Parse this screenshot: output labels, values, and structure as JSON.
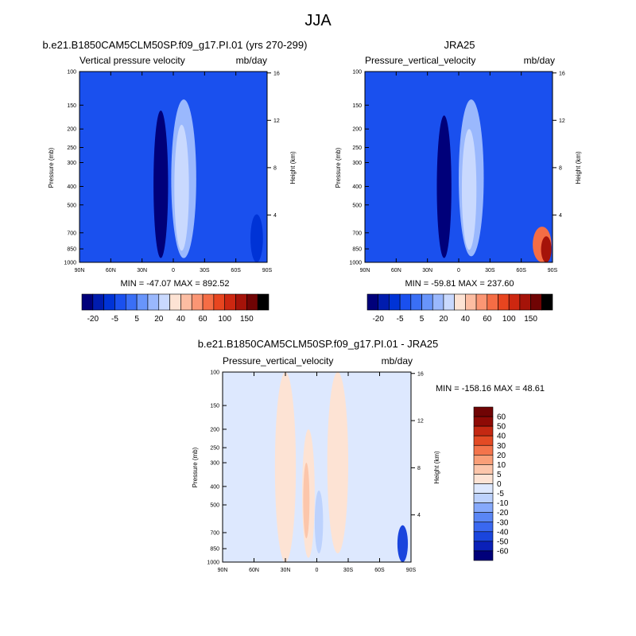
{
  "figure": {
    "main_title": "JJA"
  },
  "chart_data": [
    {
      "id": "model",
      "type": "heatmap",
      "case_title": "b.e21.B1850CAM5CLM50SP.f09_g17.PI.01 (yrs 270-299)",
      "left_title": "Vertical pressure velocity",
      "right_title": "mb/day",
      "ylabel": "Pressure (mb)",
      "y2label": "Height (km)",
      "xticks": [
        "90N",
        "60N",
        "30N",
        "0",
        "30S",
        "60S",
        "90S"
      ],
      "xlim": [
        90,
        -90
      ],
      "yticks": [
        100,
        150,
        200,
        250,
        300,
        400,
        500,
        700,
        850,
        1000
      ],
      "ylim": [
        100,
        1000
      ],
      "y2ticks": [
        4,
        8,
        12,
        16
      ],
      "stats": "MIN = -47.07  MAX = 892.52",
      "levels": [
        -20,
        -15,
        -10,
        -5,
        0,
        5,
        10,
        20,
        30,
        40,
        50,
        60,
        80,
        100,
        120,
        150
      ],
      "colorbar_labels": [
        "-20",
        "-5",
        "5",
        "20",
        "40",
        "60",
        "100",
        "150"
      ],
      "features": [
        {
          "lat": 12,
          "width": 7,
          "pmin": 160,
          "pmax": 950,
          "value": -21
        },
        {
          "lat": 12,
          "width": 3,
          "pmin": 200,
          "pmax": 880,
          "value": -30
        },
        {
          "lat": -10,
          "width": 12,
          "pmin": 140,
          "pmax": 950,
          "value": 8
        },
        {
          "lat": -8,
          "width": 7,
          "pmin": 190,
          "pmax": 870,
          "value": 18
        },
        {
          "lat": -80,
          "width": 6,
          "pmin": 560,
          "pmax": 1000,
          "value": -12
        }
      ],
      "background_value": -7
    },
    {
      "id": "obs",
      "type": "heatmap",
      "case_title": "JRA25",
      "left_title": "Pressure_vertical_velocity",
      "right_title": "mb/day",
      "ylabel": "Pressure (mb)",
      "y2label": "Height (km)",
      "xticks": [
        "90N",
        "60N",
        "30N",
        "0",
        "30S",
        "60S",
        "90S"
      ],
      "xlim": [
        90,
        -90
      ],
      "yticks": [
        100,
        150,
        200,
        250,
        300,
        400,
        500,
        700,
        850,
        1000
      ],
      "ylim": [
        100,
        1000
      ],
      "y2ticks": [
        4,
        8,
        12,
        16
      ],
      "stats": "MIN = -59.81  MAX = 237.60",
      "levels": [
        -20,
        -15,
        -10,
        -5,
        0,
        5,
        10,
        20,
        30,
        40,
        50,
        60,
        80,
        100,
        120,
        150
      ],
      "colorbar_labels": [
        "-20",
        "-5",
        "5",
        "20",
        "40",
        "60",
        "100",
        "150"
      ],
      "features": [
        {
          "lat": 14,
          "width": 7,
          "pmin": 170,
          "pmax": 950,
          "value": -21
        },
        {
          "lat": 14,
          "width": 3,
          "pmin": 230,
          "pmax": 900,
          "value": -30
        },
        {
          "lat": -12,
          "width": 12,
          "pmin": 140,
          "pmax": 930,
          "value": 7
        },
        {
          "lat": -10,
          "width": 7,
          "pmin": 200,
          "pmax": 860,
          "value": 16
        },
        {
          "lat": -80,
          "width": 9,
          "pmin": 650,
          "pmax": 1000,
          "value": 60
        },
        {
          "lat": -84,
          "width": 5,
          "pmin": 730,
          "pmax": 1000,
          "value": 120
        }
      ],
      "background_value": -7
    },
    {
      "id": "diff",
      "type": "heatmap",
      "case_title": "b.e21.B1850CAM5CLM50SP.f09_g17.PI.01 - JRA25",
      "left_title": "Pressure_vertical_velocity",
      "right_title": "mb/day",
      "ylabel": "Pressure (mb)",
      "y2label": "Height (km)",
      "xticks": [
        "90N",
        "60N",
        "30N",
        "0",
        "30S",
        "60S",
        "90S"
      ],
      "xlim": [
        90,
        -90
      ],
      "yticks": [
        100,
        150,
        200,
        250,
        300,
        400,
        500,
        700,
        850,
        1000
      ],
      "ylim": [
        100,
        1000
      ],
      "y2ticks": [
        4,
        8,
        12,
        16
      ],
      "stats": "MIN = -158.16  MAX =  48.61",
      "levels": [
        -60,
        -50,
        -40,
        -30,
        -20,
        -10,
        -5,
        0,
        5,
        10,
        20,
        30,
        40,
        50,
        60
      ],
      "colorbar_labels": [
        "60",
        "50",
        "40",
        "30",
        "20",
        "10",
        "5",
        "0",
        "-5",
        "-10",
        "-20",
        "-30",
        "-40",
        "-50",
        "-60"
      ],
      "features": [
        {
          "lat": 30,
          "width": 10,
          "pmin": 100,
          "pmax": 1000,
          "value": 2
        },
        {
          "lat": 8,
          "width": 6,
          "pmin": 200,
          "pmax": 950,
          "value": 3
        },
        {
          "lat": 10,
          "width": 3,
          "pmin": 300,
          "pmax": 750,
          "value": 8
        },
        {
          "lat": -20,
          "width": 10,
          "pmin": 100,
          "pmax": 900,
          "value": 2
        },
        {
          "lat": -2,
          "width": 4,
          "pmin": 420,
          "pmax": 900,
          "value": -6
        },
        {
          "lat": -82,
          "width": 5,
          "pmin": 640,
          "pmax": 1000,
          "value": -45
        }
      ],
      "background_value": -2
    }
  ]
}
